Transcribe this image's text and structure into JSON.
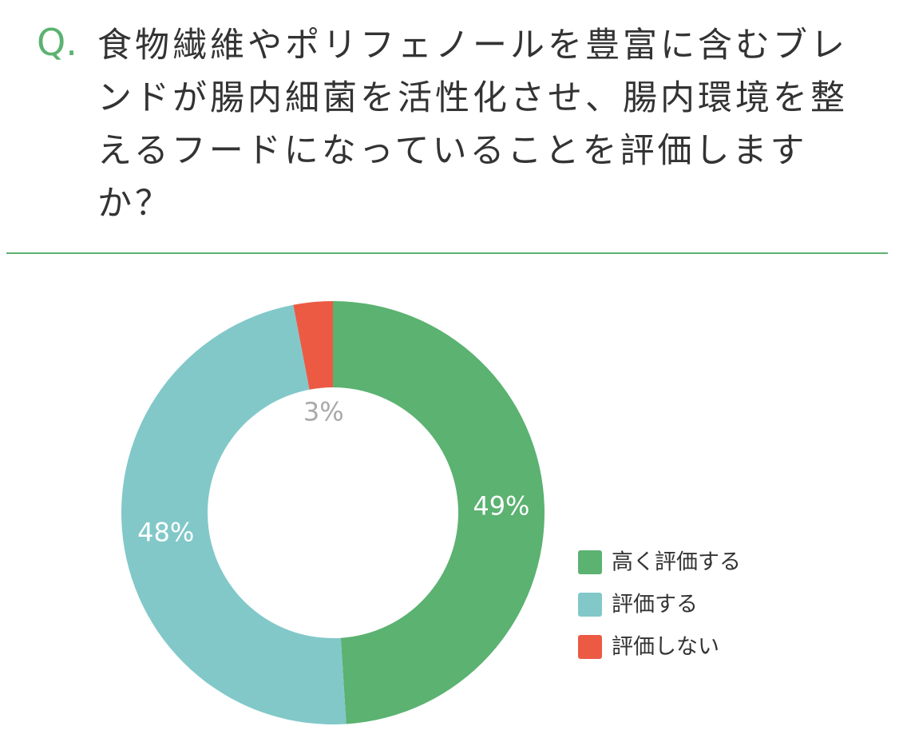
{
  "chart_data": {
    "type": "donut",
    "question_label": "Q.",
    "title": "食物繊維やポリフェノールを豊富に含むブレンドが腸内細菌を活性化させ、腸内環境を整えるフードになっていることを評価しますか？",
    "categories": [
      "高く評価する",
      "評価する",
      "評価しない"
    ],
    "values": [
      49,
      48,
      3
    ],
    "value_labels": [
      "49%",
      "48%",
      "3%"
    ],
    "colors": [
      "#5bb271",
      "#82c8c9",
      "#ec5a44"
    ],
    "value_label_colors": [
      "#ffffff",
      "#ffffff",
      "#a9a9a9"
    ],
    "legend": "right"
  }
}
